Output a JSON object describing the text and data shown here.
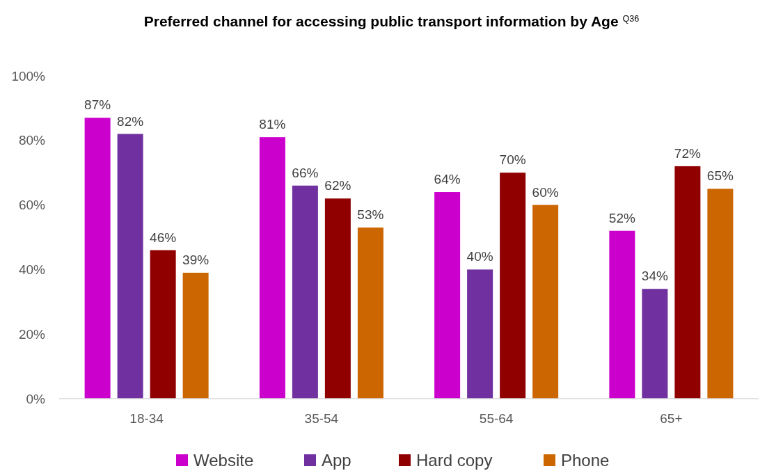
{
  "chart_data": {
    "type": "bar",
    "title": "Preferred channel for accessing public transport information by Age $^{Q36}$",
    "categories": [
      "18-34",
      "35-54",
      "55-64",
      "65+"
    ],
    "series": [
      {
        "name": "Website",
        "color": "#cc00cc",
        "values": [
          87,
          81,
          64,
          52
        ],
        "value_labels": [
          "87%",
          "81%",
          "64%",
          "52%"
        ]
      },
      {
        "name": "App",
        "color": "#7030a0",
        "values": [
          82,
          66,
          40,
          34
        ],
        "value_labels": [
          "82%",
          "66%",
          "40%",
          "34%"
        ]
      },
      {
        "name": "Hard copy",
        "color": "#900000",
        "values": [
          46,
          62,
          70,
          72
        ],
        "value_labels": [
          "46%",
          "62%",
          "70%",
          "72%"
        ]
      },
      {
        "name": "Phone",
        "color": "#cc6600",
        "values": [
          39,
          53,
          60,
          65
        ],
        "value_labels": [
          "39%",
          "53%",
          "60%",
          "65%"
        ]
      }
    ],
    "ylim": [
      0,
      100
    ],
    "yticks": [
      {
        "value": 0,
        "label": "0%"
      },
      {
        "value": 20,
        "label": "20%"
      },
      {
        "value": 40,
        "label": "40%"
      },
      {
        "value": 60,
        "label": "60%"
      },
      {
        "value": 80,
        "label": "80%"
      },
      {
        "value": 100,
        "label": "100%"
      }
    ],
    "legend": "bottom"
  }
}
